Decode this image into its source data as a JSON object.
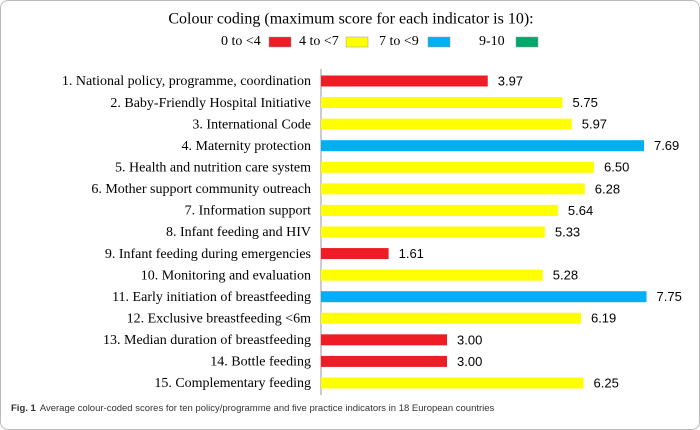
{
  "chart_data": {
    "type": "bar",
    "title": "Colour coding (maximum score for each indicator is 10):",
    "legend": [
      {
        "label": "0 to <4",
        "color": "#ee1c25"
      },
      {
        "label": "4 to <7",
        "color": "#ffff00"
      },
      {
        "label": "7 to <9",
        "color": "#00b0f0"
      },
      {
        "label": "9-10",
        "color": "#00a86b"
      }
    ],
    "categories": [
      "1. National policy, programme, coordination",
      "2. Baby-Friendly Hospital Initiative",
      "3. International Code",
      "4. Maternity protection",
      "5. Health and nutrition care system",
      "6. Mother support community outreach",
      "7. Information support",
      "8. Infant feeding and HIV",
      "9. Infant feeding during emergencies",
      "10. Monitoring and evaluation",
      "11. Early initiation of breastfeeding",
      "12. Exclusive breastfeeding <6m",
      "13. Median duration of breastfeeding",
      "14. Bottle feeding",
      "15. Complementary feeding"
    ],
    "values": [
      3.97,
      5.75,
      5.97,
      7.69,
      6.5,
      6.28,
      5.64,
      5.33,
      1.61,
      5.28,
      7.75,
      6.19,
      3.0,
      3.0,
      6.25
    ],
    "value_labels": [
      "3.97",
      "5.75",
      "5.97",
      "7.69",
      "6.50",
      "6.28",
      "5.64",
      "5.33",
      "1.61",
      "5.28",
      "7.75",
      "6.19",
      "3.00",
      "3.00",
      "6.25"
    ],
    "colors": [
      "#ee1c25",
      "#ffff00",
      "#ffff00",
      "#00b0f0",
      "#ffff00",
      "#ffff00",
      "#ffff00",
      "#ffff00",
      "#ee1c25",
      "#ffff00",
      "#00b0f0",
      "#ffff00",
      "#ee1c25",
      "#ee1c25",
      "#ffff00"
    ]
  },
  "caption": {
    "label": "Fig. 1",
    "text": "Average colour-coded scores for ten policy/programme and five practice indicators in 18 European countries"
  }
}
